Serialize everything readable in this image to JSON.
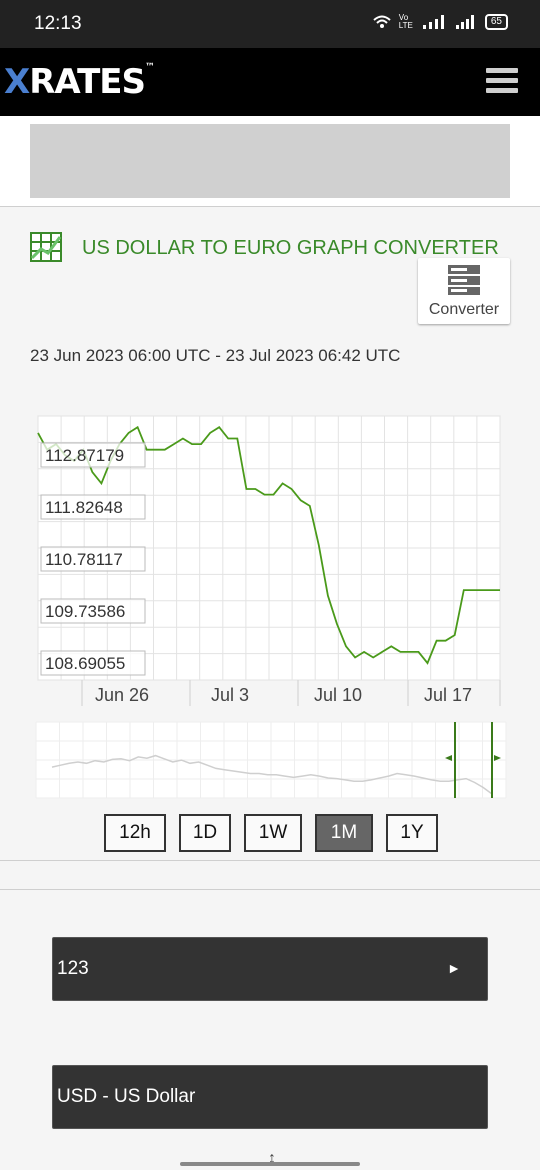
{
  "status_bar": {
    "time": "12:13",
    "volte": "Vo\nLTE",
    "battery": "65"
  },
  "app": {
    "logo_x": "X",
    "logo_rest": "RATES",
    "logo_tm": "™"
  },
  "page": {
    "title": "US DOLLAR TO EURO GRAPH CONVERTER",
    "converter_label": "Converter",
    "date_range": "23 Jun 2023 06:00 UTC - 23 Jul 2023 06:42 UTC"
  },
  "chart_data": {
    "type": "line",
    "x_tick_labels": [
      "Jun 26",
      "Jul 3",
      "Jul 10",
      "Jul 17"
    ],
    "y_tick_labels": [
      "112.87179",
      "111.82648",
      "110.78117",
      "109.73586",
      "108.69055"
    ],
    "ylim": [
      108.5,
      113.2
    ],
    "grid": true,
    "line_color": "#4a9a1a",
    "series": [
      {
        "values": [
          112.9,
          112.6,
          112.7,
          112.5,
          112.4,
          112.6,
          112.2,
          112.0,
          112.4,
          112.7,
          112.9,
          113.0,
          112.6,
          112.6,
          112.6,
          112.7,
          112.8,
          112.7,
          112.7,
          112.9,
          113.0,
          112.8,
          112.8,
          111.9,
          111.9,
          111.8,
          111.8,
          112.0,
          111.9,
          111.7,
          111.6,
          110.9,
          110.0,
          109.5,
          109.1,
          108.9,
          109.0,
          108.9,
          109.0,
          109.1,
          109.0,
          109.0,
          109.0,
          108.8,
          109.2,
          109.2,
          109.3,
          110.1,
          110.1,
          110.1,
          110.1,
          110.1
        ]
      }
    ]
  },
  "overview_chart": {
    "values": [
      0.58,
      0.55,
      0.52,
      0.5,
      0.52,
      0.48,
      0.5,
      0.46,
      0.45,
      0.48,
      0.42,
      0.44,
      0.4,
      0.45,
      0.5,
      0.47,
      0.52,
      0.5,
      0.55,
      0.6,
      0.62,
      0.64,
      0.66,
      0.68,
      0.68,
      0.7,
      0.7,
      0.72,
      0.74,
      0.72,
      0.7,
      0.72,
      0.75,
      0.76,
      0.78,
      0.8,
      0.8,
      0.78,
      0.75,
      0.72,
      0.68,
      0.7,
      0.72,
      0.75,
      0.78,
      0.8,
      0.8,
      0.78,
      0.76,
      0.82,
      0.9,
      1.0
    ]
  },
  "period_buttons": [
    {
      "label": "12h",
      "active": false
    },
    {
      "label": "1D",
      "active": false
    },
    {
      "label": "1W",
      "active": false
    },
    {
      "label": "1M",
      "active": true
    },
    {
      "label": "1Y",
      "active": false
    }
  ],
  "form": {
    "amount": "123",
    "amount_arrow": "►",
    "currency": "USD - US Dollar"
  },
  "icons": {
    "chart": "grid-chart-icon",
    "converter": "server-icon",
    "menu": "hamburger-icon"
  },
  "colors": {
    "accent_green": "#3a8a2a",
    "status_bar": "#222222",
    "app_bar": "#000000",
    "logo_blue": "#4a7fd0"
  }
}
